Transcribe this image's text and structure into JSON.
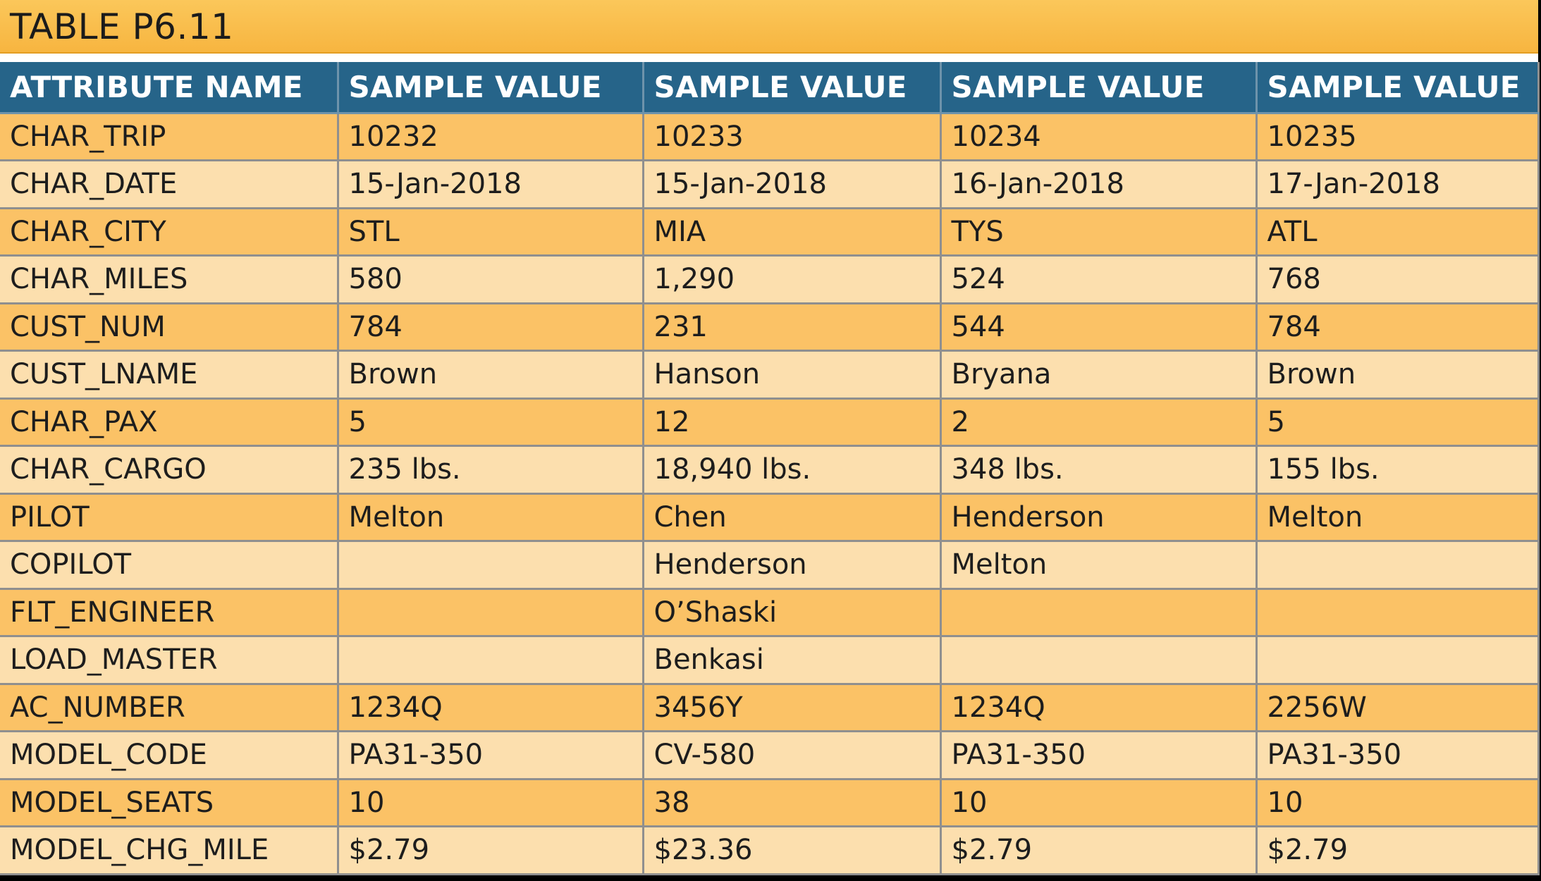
{
  "title": "TABLE P6.11",
  "headers": [
    "ATTRIBUTE NAME",
    "SAMPLE VALUE",
    "SAMPLE VALUE",
    "SAMPLE VALUE",
    "SAMPLE VALUE"
  ],
  "rows": [
    [
      "CHAR_TRIP",
      "10232",
      "10233",
      "10234",
      "10235"
    ],
    [
      "CHAR_DATE",
      "15-Jan-2018",
      "15-Jan-2018",
      "16-Jan-2018",
      "17-Jan-2018"
    ],
    [
      "CHAR_CITY",
      "STL",
      "MIA",
      "TYS",
      "ATL"
    ],
    [
      "CHAR_MILES",
      "580",
      "1,290",
      "524",
      "768"
    ],
    [
      "CUST_NUM",
      "784",
      "231",
      "544",
      "784"
    ],
    [
      "CUST_LNAME",
      "Brown",
      "Hanson",
      "Bryana",
      "Brown"
    ],
    [
      "CHAR_PAX",
      "5",
      "12",
      "2",
      "5"
    ],
    [
      "CHAR_CARGO",
      "235 lbs.",
      "18,940 lbs.",
      "348 lbs.",
      "155 lbs."
    ],
    [
      "PILOT",
      "Melton",
      "Chen",
      "Henderson",
      "Melton"
    ],
    [
      "COPILOT",
      "",
      "Henderson",
      "Melton",
      ""
    ],
    [
      "FLT_ENGINEER",
      "",
      "O’Shaski",
      "",
      ""
    ],
    [
      "LOAD_MASTER",
      "",
      "Benkasi",
      "",
      ""
    ],
    [
      "AC_NUMBER",
      "1234Q",
      "3456Y",
      "1234Q",
      "2256W"
    ],
    [
      "MODEL_CODE",
      "PA31-350",
      "CV-580",
      "PA31-350",
      "PA31-350"
    ],
    [
      "MODEL_SEATS",
      "10",
      "38",
      "10",
      "10"
    ],
    [
      "MODEL_CHG_MILE",
      "$2.79",
      "$23.36",
      "$2.79",
      "$2.79"
    ]
  ],
  "colors": {
    "title_bar": "#f7b540",
    "header_bg": "#266489",
    "row_dark": "#fbc266",
    "row_light": "#fcdfae"
  }
}
